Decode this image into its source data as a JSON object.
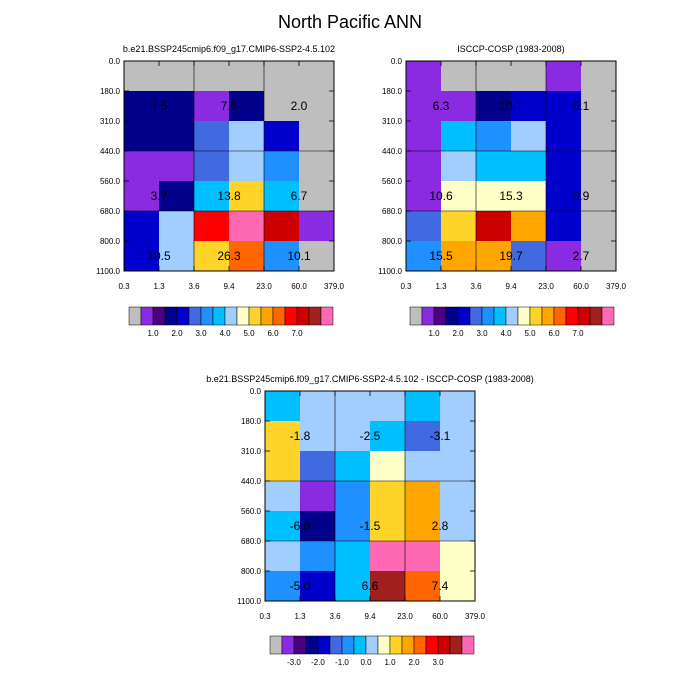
{
  "figure": {
    "title": "North Pacific ANN"
  },
  "colors": {
    "main": [
      "#bebebe",
      "#8a2be2",
      "#4b0082",
      "#00008b",
      "#0000cd",
      "#4169e1",
      "#1e90ff",
      "#00bfff",
      "#a2cdff",
      "#ffffc8",
      "#ffd42a",
      "#ffa500",
      "#ff6600",
      "#ff0000",
      "#cd0000",
      "#a0201e",
      "#ff69b4"
    ],
    "diff": [
      "#bebebe",
      "#8a2be2",
      "#4b0082",
      "#00008b",
      "#0000cd",
      "#4169e1",
      "#1e90ff",
      "#00bfff",
      "#a2cdff",
      "#ffffc8",
      "#ffd42a",
      "#ffa500",
      "#ff6600",
      "#ff0000",
      "#cd0000",
      "#a0201e",
      "#ff69b4"
    ]
  },
  "chart_data": [
    {
      "type": "heatmap",
      "title": "b.e21.BSSP245cmip6.f09_g17.CMIP6-SSP2-4.5.102",
      "x_tick_labels": [
        "0.3",
        "1.3",
        "3.6",
        "9.4",
        "23.0",
        "60.0",
        "379.0"
      ],
      "y_tick_labels": [
        "0.0",
        "180.0",
        "310.0",
        "440.0",
        "560.0",
        "680.0",
        "800.0",
        "1100.0"
      ],
      "cell_colors": [
        [
          0,
          0,
          0,
          0,
          0,
          0
        ],
        [
          3,
          3,
          1,
          3,
          0,
          0
        ],
        [
          3,
          3,
          5,
          8,
          4,
          0
        ],
        [
          1,
          1,
          5,
          8,
          6,
          0
        ],
        [
          1,
          3,
          7,
          10,
          7,
          0
        ],
        [
          4,
          8,
          13,
          16,
          14,
          1
        ],
        [
          4,
          8,
          10,
          12,
          6,
          0
        ]
      ],
      "labels": [
        {
          "text": "4.5",
          "row": 1,
          "col": 0.5
        },
        {
          "text": "7.6",
          "row": 1,
          "col": 2.5
        },
        {
          "text": "2.0",
          "row": 1,
          "col": 4.5
        },
        {
          "text": "3.7",
          "row": 4,
          "col": 0.5
        },
        {
          "text": "13.8",
          "row": 4,
          "col": 2.5
        },
        {
          "text": "6.7",
          "row": 4,
          "col": 4.5
        },
        {
          "text": "10.5",
          "row": 6,
          "col": 0.5
        },
        {
          "text": "26.3",
          "row": 6,
          "col": 2.5
        },
        {
          "text": "10.1",
          "row": 6,
          "col": 4.5
        }
      ],
      "colorbar": {
        "palette": "main",
        "labels": [
          "1.0",
          "2.0",
          "3.0",
          "4.0",
          "5.0",
          "6.0",
          "7.0"
        ]
      }
    },
    {
      "type": "heatmap",
      "title": "ISCCP-COSP (1983-2008)",
      "x_tick_labels": [
        "0.3",
        "1.3",
        "3.6",
        "9.4",
        "23.0",
        "60.0",
        "379.0"
      ],
      "y_tick_labels": [
        "0.0",
        "180.0",
        "310.0",
        "440.0",
        "560.0",
        "680.0",
        "800.0",
        "1100.0"
      ],
      "cell_colors": [
        [
          1,
          0,
          0,
          0,
          1,
          0
        ],
        [
          1,
          1,
          3,
          4,
          4,
          0
        ],
        [
          1,
          7,
          6,
          8,
          4,
          0
        ],
        [
          1,
          8,
          7,
          7,
          4,
          0
        ],
        [
          1,
          9,
          9,
          9,
          4,
          0
        ],
        [
          5,
          10,
          14,
          11,
          4,
          0
        ],
        [
          6,
          11,
          11,
          5,
          1,
          0
        ]
      ],
      "labels": [
        {
          "text": "6.3",
          "row": 1,
          "col": 0.5
        },
        {
          "text": "10.1",
          "row": 1,
          "col": 2.5
        },
        {
          "text": "5.1",
          "row": 1,
          "col": 4.5
        },
        {
          "text": "10.6",
          "row": 4,
          "col": 0.5
        },
        {
          "text": "15.3",
          "row": 4,
          "col": 2.5
        },
        {
          "text": "3.9",
          "row": 4,
          "col": 4.5
        },
        {
          "text": "15.5",
          "row": 6,
          "col": 0.5
        },
        {
          "text": "19.7",
          "row": 6,
          "col": 2.5
        },
        {
          "text": "2.7",
          "row": 6,
          "col": 4.5
        }
      ],
      "colorbar": {
        "palette": "main",
        "labels": [
          "1.0",
          "2.0",
          "3.0",
          "4.0",
          "5.0",
          "6.0",
          "7.0"
        ]
      }
    },
    {
      "type": "heatmap",
      "title": "b.e21.BSSP245cmip6.f09_g17.CMIP6-SSP2-4.5.102 - ISCCP-COSP (1983-2008)",
      "x_tick_labels": [
        "0.3",
        "1.3",
        "3.6",
        "9.4",
        "23.0",
        "60.0",
        "379.0"
      ],
      "y_tick_labels": [
        "0.0",
        "180.0",
        "310.0",
        "440.0",
        "560.0",
        "680.0",
        "800.0",
        "1100.0"
      ],
      "cell_colors": [
        [
          7,
          8,
          8,
          8,
          7,
          8
        ],
        [
          10,
          8,
          8,
          7,
          5,
          8
        ],
        [
          10,
          5,
          7,
          9,
          8,
          8
        ],
        [
          8,
          1,
          6,
          10,
          11,
          8
        ],
        [
          7,
          3,
          6,
          10,
          11,
          8
        ],
        [
          8,
          6,
          7,
          16,
          16,
          9
        ],
        [
          6,
          4,
          7,
          15,
          12,
          9
        ]
      ],
      "labels": [
        {
          "text": "-1.8",
          "row": 1,
          "col": 0.5
        },
        {
          "text": "-2.5",
          "row": 1,
          "col": 2.5
        },
        {
          "text": "-3.1",
          "row": 1,
          "col": 4.5
        },
        {
          "text": "-6.8",
          "row": 4,
          "col": 0.5
        },
        {
          "text": "-1.5",
          "row": 4,
          "col": 2.5
        },
        {
          "text": "2.8",
          "row": 4,
          "col": 4.5
        },
        {
          "text": "-5.0",
          "row": 6,
          "col": 0.5
        },
        {
          "text": "6.6",
          "row": 6,
          "col": 2.5
        },
        {
          "text": "7.4",
          "row": 6,
          "col": 4.5
        }
      ],
      "colorbar": {
        "palette": "diff",
        "labels": [
          "-3.0",
          "-2.0",
          "-1.0",
          "0.0",
          "1.0",
          "2.0",
          "3.0"
        ]
      }
    }
  ]
}
